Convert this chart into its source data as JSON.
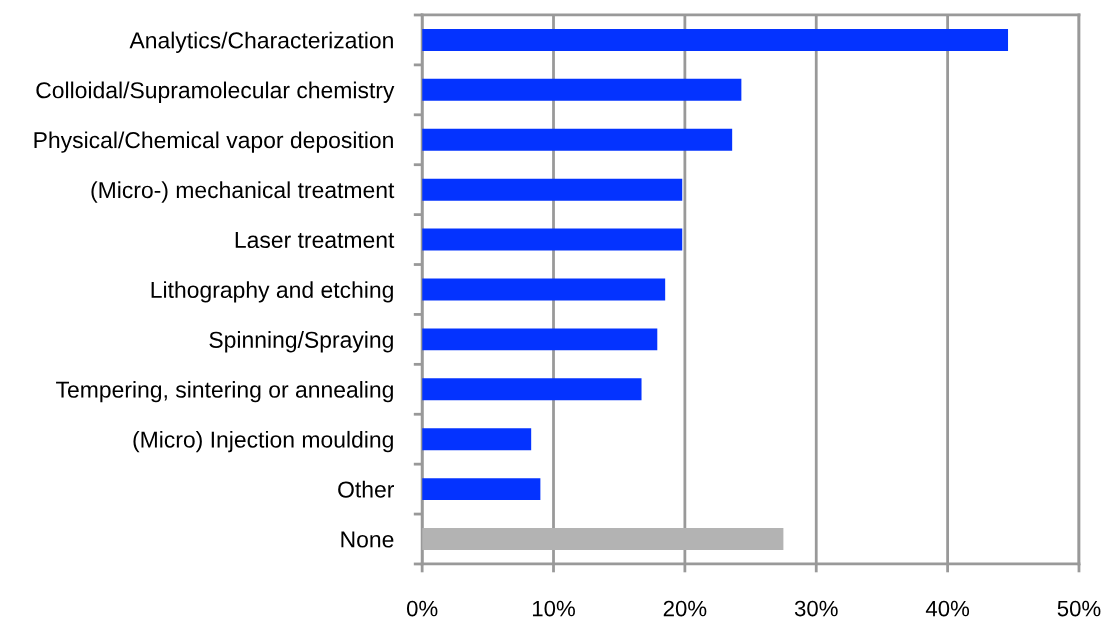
{
  "chart_data": {
    "type": "bar",
    "orientation": "horizontal",
    "categories": [
      "Analytics/Characterization",
      "Colloidal/Supramolecular chemistry",
      "Physical/Chemical vapor deposition",
      "(Micro-) mechanical treatment",
      "Laser treatment",
      "Lithography and etching",
      "Spinning/Spraying",
      "Tempering, sintering or annealing",
      "(Micro) Injection moulding",
      "Other",
      "None"
    ],
    "values": [
      44.6,
      24.3,
      23.6,
      19.8,
      19.8,
      18.5,
      17.9,
      16.7,
      8.3,
      9.0,
      27.5
    ],
    "colors": [
      "#0433ff",
      "#0433ff",
      "#0433ff",
      "#0433ff",
      "#0433ff",
      "#0433ff",
      "#0433ff",
      "#0433ff",
      "#0433ff",
      "#0433ff",
      "#b3b3b3"
    ],
    "xlim": [
      0,
      50
    ],
    "xticks": [
      {
        "value": 0,
        "label": "0%"
      },
      {
        "value": 10,
        "label": "10%"
      },
      {
        "value": 20,
        "label": "20%"
      },
      {
        "value": 30,
        "label": "30%"
      },
      {
        "value": 40,
        "label": "40%"
      },
      {
        "value": 50,
        "label": "50%"
      }
    ],
    "grid": "x"
  }
}
